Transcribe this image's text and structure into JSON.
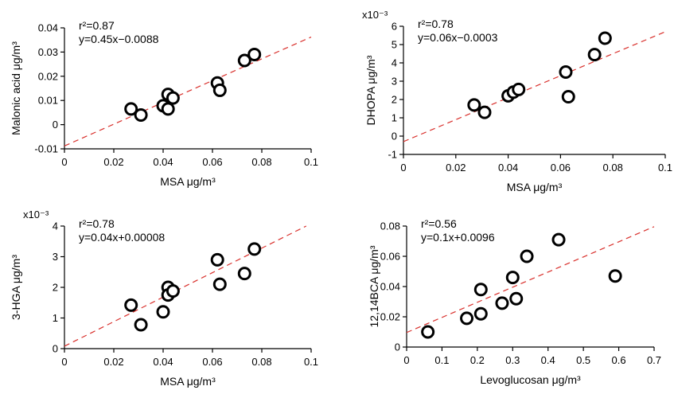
{
  "chart_data": [
    {
      "type": "scatter",
      "xlabel": "MSA μg/m³",
      "ylabel": "Malonic acid μg/m³",
      "scale_label": "",
      "xlim": [
        0,
        0.1
      ],
      "ylim": [
        -0.01,
        0.04
      ],
      "xticks": [
        "0",
        "0.02",
        "0.04",
        "0.06",
        "0.08",
        "0.1"
      ],
      "yticks": [
        "-0.01",
        "0",
        "0.01",
        "0.02",
        "0.03",
        "0.04"
      ],
      "r2": "r²=0.87",
      "equation": "y=0.45x−0.0088",
      "fit": {
        "slope": 0.45,
        "intercept": -0.0088
      },
      "x": [
        0.027,
        0.031,
        0.04,
        0.042,
        0.042,
        0.044,
        0.062,
        0.063,
        0.073,
        0.077
      ],
      "y": [
        0.0065,
        0.004,
        0.0078,
        0.0125,
        0.0065,
        0.011,
        0.0172,
        0.0142,
        0.0265,
        0.029
      ]
    },
    {
      "type": "scatter",
      "xlabel": "MSA μg/m³",
      "ylabel": "DHOPA μg/m³",
      "scale_label": "x10⁻³",
      "xlim": [
        0,
        0.1
      ],
      "ylim": [
        -1,
        6
      ],
      "xticks": [
        "0",
        "0.02",
        "0.04",
        "0.06",
        "0.08",
        "0.1"
      ],
      "yticks": [
        "-1",
        "0",
        "1",
        "2",
        "3",
        "4",
        "5",
        "6"
      ],
      "r2": "r²=0.78",
      "equation": "y=0.06x−0.0003",
      "fit": {
        "slope": 60,
        "intercept": -0.3
      },
      "x": [
        0.027,
        0.031,
        0.04,
        0.042,
        0.044,
        0.062,
        0.063,
        0.073,
        0.077
      ],
      "y": [
        1.7,
        1.3,
        2.2,
        2.4,
        2.55,
        3.5,
        2.15,
        4.45,
        5.35
      ]
    },
    {
      "type": "scatter",
      "xlabel": "MSA μg/m³",
      "ylabel": "3-HGA μg/m³",
      "scale_label": "x10⁻³",
      "xlim": [
        0,
        0.1
      ],
      "ylim": [
        0,
        4
      ],
      "xticks": [
        "0",
        "0.02",
        "0.04",
        "0.06",
        "0.08",
        "0.1"
      ],
      "yticks": [
        "0",
        "1",
        "2",
        "3",
        "4"
      ],
      "r2": "r²=0.78",
      "equation": "y=0.04x+0.00008",
      "fit": {
        "slope": 40,
        "intercept": 0.08
      },
      "x": [
        0.027,
        0.031,
        0.04,
        0.042,
        0.042,
        0.044,
        0.062,
        0.063,
        0.073,
        0.077
      ],
      "y": [
        1.42,
        0.78,
        1.2,
        2.0,
        1.75,
        1.88,
        2.9,
        2.1,
        2.45,
        3.25
      ]
    },
    {
      "type": "scatter",
      "xlabel": "Levoglucosan μg/m³",
      "ylabel": "12,14BCA  μg/m³",
      "scale_label": "",
      "xlim": [
        0,
        0.7
      ],
      "ylim": [
        0,
        0.08
      ],
      "xticks": [
        "0",
        "0.1",
        "0.2",
        "0.3",
        "0.4",
        "0.5",
        "0.6",
        "0.7"
      ],
      "yticks": [
        "0",
        "0.02",
        "0.04",
        "0.06",
        "0.08"
      ],
      "r2": "r²=0.56",
      "equation": "y=0.1x+0.0096",
      "fit": {
        "slope": 0.1,
        "intercept": 0.0096
      },
      "x": [
        0.06,
        0.17,
        0.21,
        0.21,
        0.27,
        0.3,
        0.31,
        0.34,
        0.43,
        0.59
      ],
      "y": [
        0.01,
        0.019,
        0.022,
        0.038,
        0.029,
        0.046,
        0.032,
        0.06,
        0.071,
        0.047
      ]
    }
  ]
}
